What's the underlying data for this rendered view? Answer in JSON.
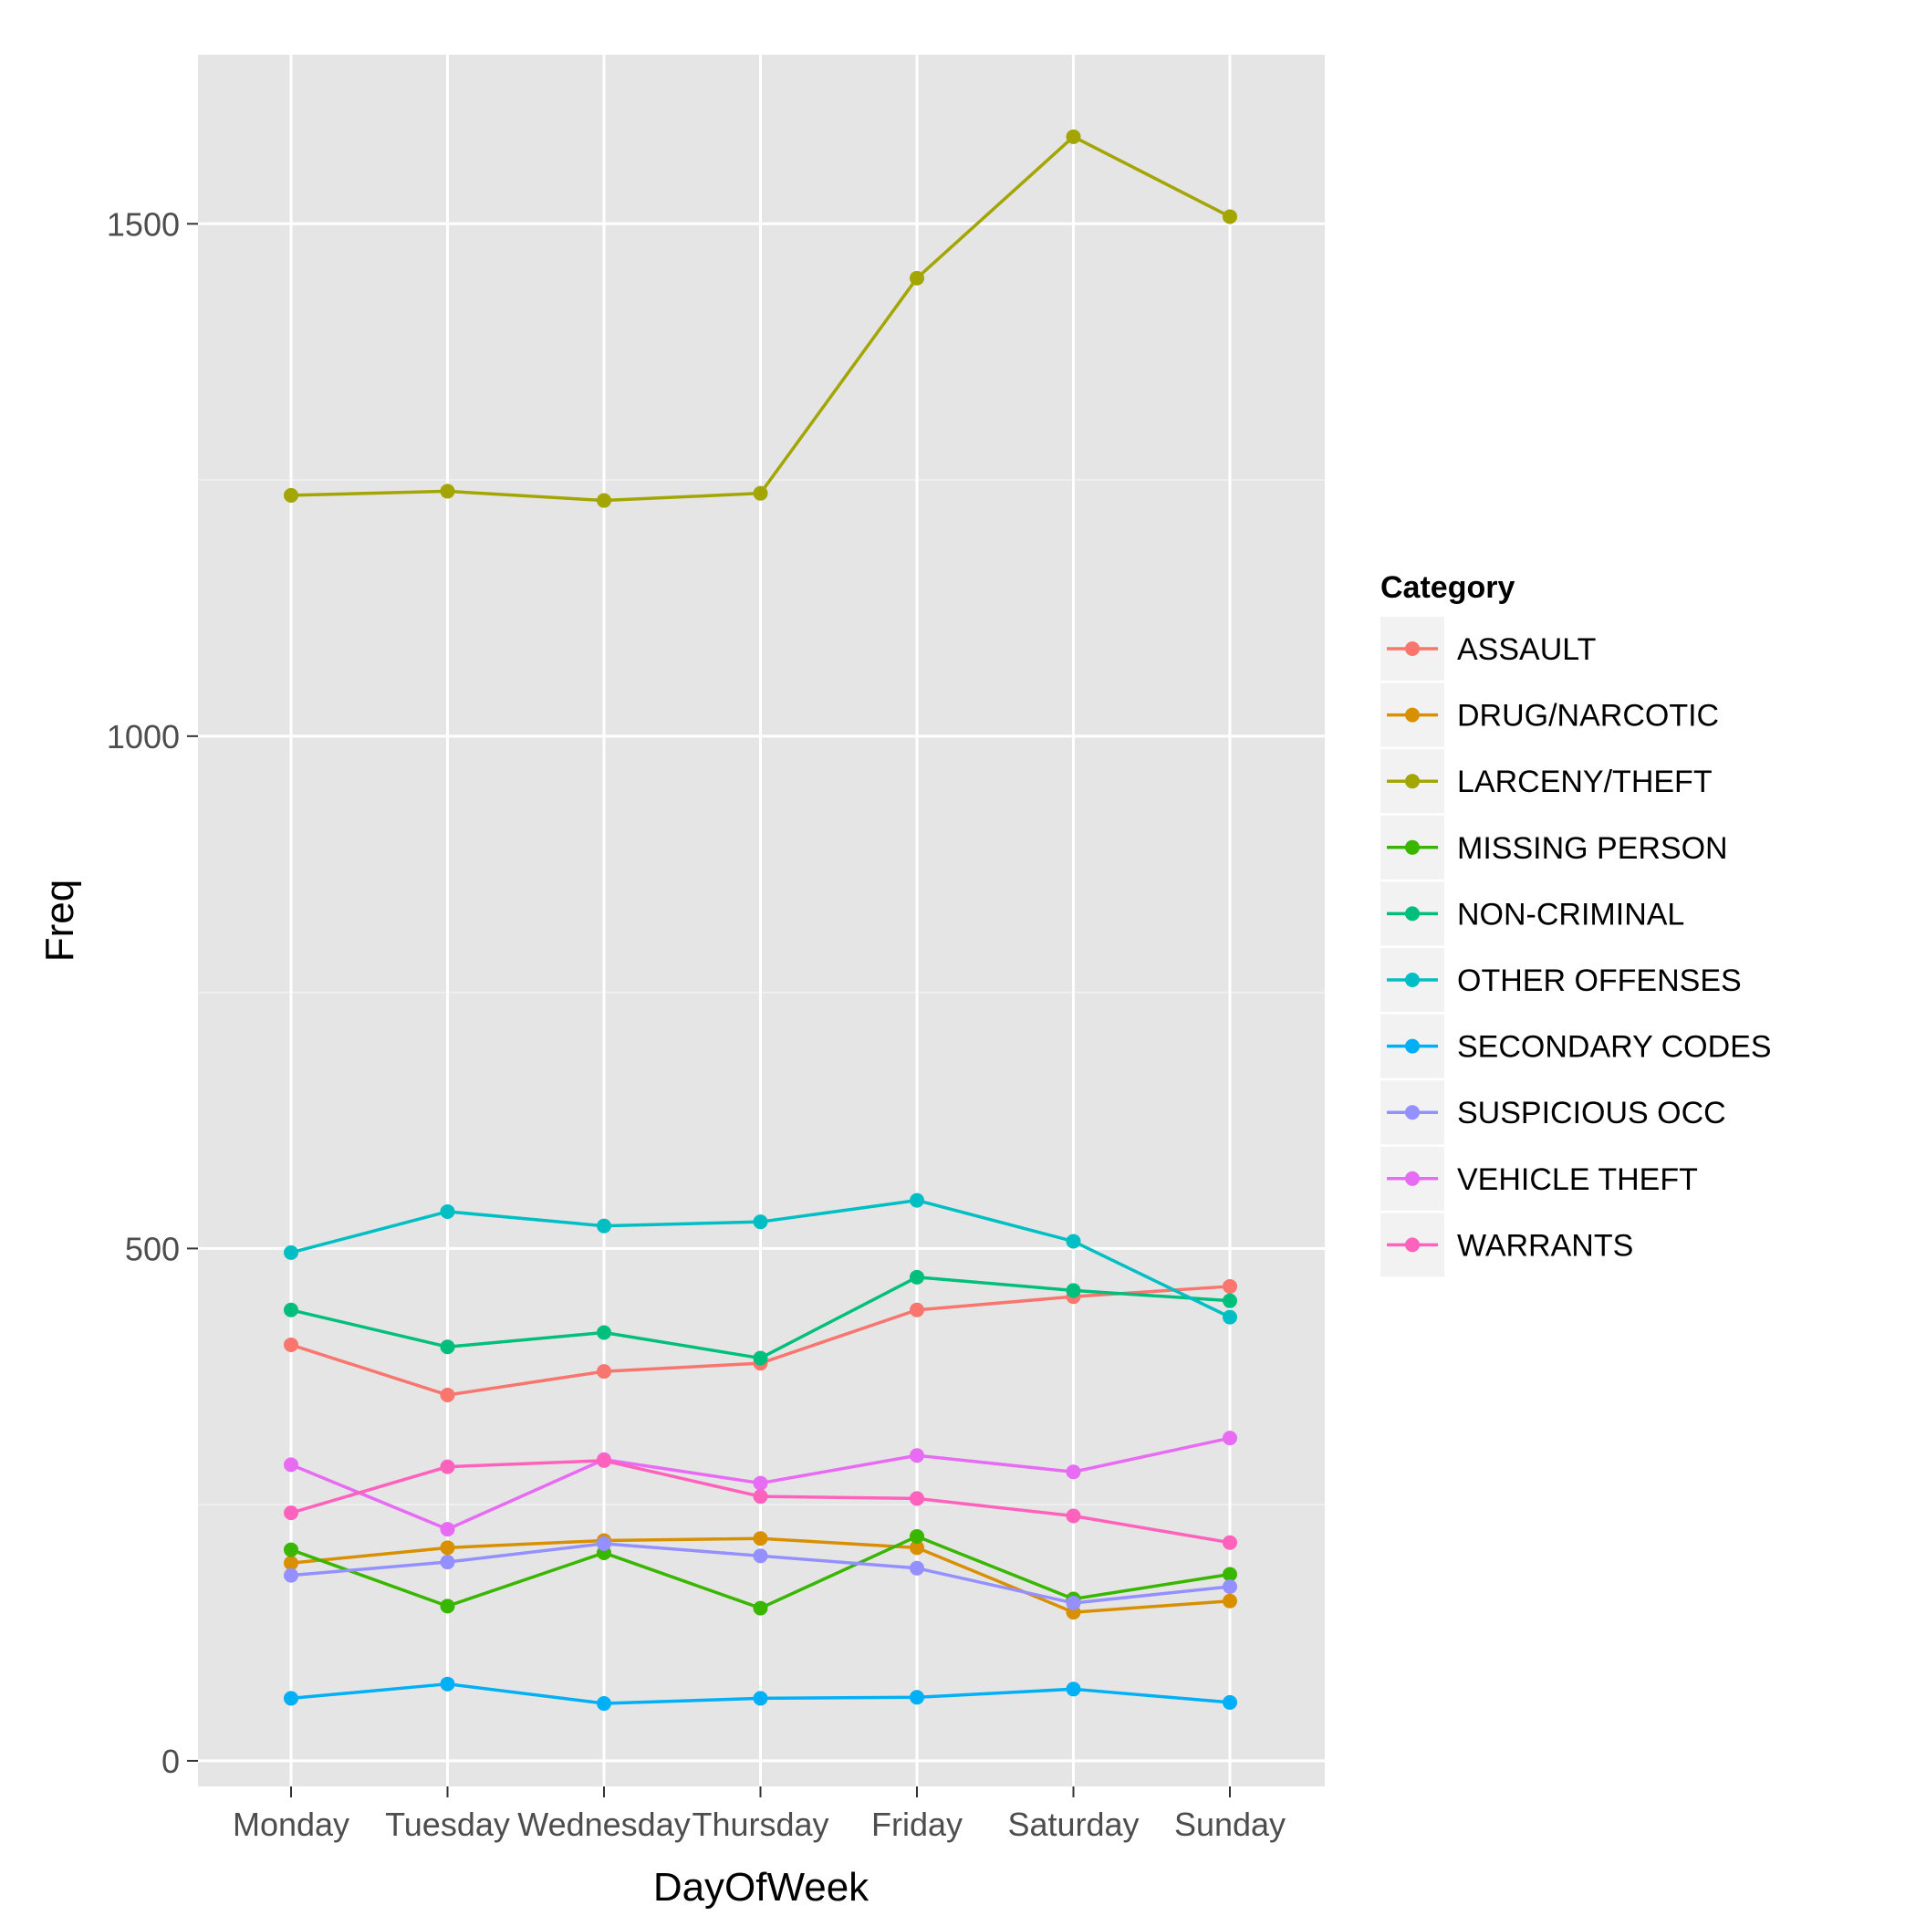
{
  "chart_data": {
    "type": "line",
    "xlabel": "DayOfWeek",
    "ylabel": "Freq",
    "ylim": [
      -25,
      1665
    ],
    "yticks": [
      0,
      500,
      1000,
      1500
    ],
    "grid": true,
    "legend_title": "Category",
    "legend_position": "right",
    "categories": [
      "Monday",
      "Tuesday",
      "Wednesday",
      "Thursday",
      "Friday",
      "Saturday",
      "Sunday"
    ],
    "series": [
      {
        "name": "ASSAULT",
        "color": "#F8766D",
        "values": [
          406,
          357,
          380,
          388,
          440,
          453,
          463
        ]
      },
      {
        "name": "DRUG/NARCOTIC",
        "color": "#D89000",
        "values": [
          193,
          208,
          215,
          217,
          208,
          145,
          156
        ]
      },
      {
        "name": "LARCENY/THEFT",
        "color": "#A3A500",
        "values": [
          1235,
          1239,
          1230,
          1237,
          1447,
          1585,
          1507
        ]
      },
      {
        "name": "MISSING PERSON",
        "color": "#39B600",
        "values": [
          206,
          151,
          203,
          149,
          219,
          158,
          182
        ]
      },
      {
        "name": "NON-CRIMINAL",
        "color": "#00BF7D",
        "values": [
          440,
          404,
          418,
          393,
          472,
          459,
          449
        ]
      },
      {
        "name": "OTHER OFFENSES",
        "color": "#00BFC4",
        "values": [
          496,
          536,
          522,
          526,
          547,
          507,
          433
        ]
      },
      {
        "name": "SECONDARY CODES",
        "color": "#00B0F6",
        "values": [
          61,
          75,
          56,
          61,
          62,
          70,
          57
        ]
      },
      {
        "name": "SUSPICIOUS OCC",
        "color": "#9590FF",
        "values": [
          181,
          194,
          212,
          200,
          188,
          154,
          170
        ]
      },
      {
        "name": "VEHICLE THEFT",
        "color": "#E76BF3",
        "values": [
          289,
          226,
          294,
          271,
          298,
          282,
          315
        ]
      },
      {
        "name": "WARRANTS",
        "color": "#FF62BC",
        "values": [
          242,
          287,
          293,
          258,
          256,
          239,
          213
        ]
      }
    ]
  }
}
